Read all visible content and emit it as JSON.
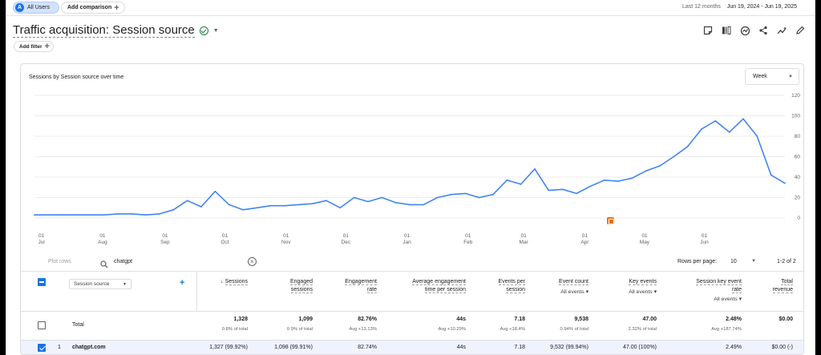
{
  "topbar": {
    "segment_initial": "A",
    "segment_label": "All Users",
    "add_comparison": "Add comparison",
    "range_label": "Last 12 months",
    "range_value": "Jun 19, 2024 - Jun 19, 2025"
  },
  "report": {
    "title": "Traffic acquisition: Session source",
    "add_filter": "Add filter"
  },
  "chart_card": {
    "title": "Sessions by Session source over time",
    "granularity": "Week"
  },
  "chart_data": {
    "type": "line",
    "title": "Sessions by Session source over time",
    "x_ticks": [
      {
        "day": "01",
        "month": "Jul"
      },
      {
        "day": "01",
        "month": "Aug"
      },
      {
        "day": "01",
        "month": "Sep"
      },
      {
        "day": "01",
        "month": "Oct"
      },
      {
        "day": "01",
        "month": "Nov"
      },
      {
        "day": "01",
        "month": "Dec"
      },
      {
        "day": "01",
        "month": "Jan"
      },
      {
        "day": "01",
        "month": "Feb"
      },
      {
        "day": "01",
        "month": "Mar"
      },
      {
        "day": "01",
        "month": "Apr"
      },
      {
        "day": "01",
        "month": "May"
      },
      {
        "day": "01",
        "month": "Jun"
      }
    ],
    "y_ticks": [
      "0",
      "20",
      "40",
      "60",
      "80",
      "100",
      "120"
    ],
    "ylim": [
      0,
      120
    ],
    "grid": true,
    "series": [
      {
        "color": "#4285f4",
        "values": [
          3,
          3,
          3,
          3,
          3,
          3,
          4,
          4,
          3,
          4,
          8,
          17,
          11,
          26,
          13,
          8,
          10,
          12,
          12,
          13,
          14,
          17,
          10,
          20,
          16,
          20,
          15,
          13,
          13,
          20,
          23,
          24,
          20,
          23,
          37,
          33,
          48,
          27,
          28,
          24,
          31,
          37,
          36,
          39,
          46,
          51,
          60,
          70,
          87,
          95,
          84,
          97,
          80,
          42,
          34
        ]
      }
    ]
  },
  "table": {
    "plot_rows": "Plot rows",
    "search_value": "chatgpt",
    "rows_per_page_label": "Rows per page:",
    "rows_per_page_value": "10",
    "page_range": "1-2 of 2",
    "dimension": "Session source",
    "columns": [
      {
        "label1": "Sessions",
        "label2": "",
        "events": "",
        "sorted": true
      },
      {
        "label1": "Engaged",
        "label2": "sessions",
        "events": ""
      },
      {
        "label1": "Engagement",
        "label2": "rate",
        "events": ""
      },
      {
        "label1": "Average engagement",
        "label2": "time per session",
        "events": ""
      },
      {
        "label1": "Events per",
        "label2": "session",
        "events": ""
      },
      {
        "label1": "Event count",
        "label2": "",
        "events": "All events"
      },
      {
        "label1": "Key events",
        "label2": "",
        "events": "All events"
      },
      {
        "label1": "Session key event",
        "label2": "rate",
        "events": "All events"
      },
      {
        "label1": "Total",
        "label2": "revenue",
        "events": ""
      }
    ],
    "total": {
      "label": "Total",
      "values": [
        "1,328",
        "1,099",
        "82.76%",
        "44s",
        "7.18",
        "9,538",
        "47.00",
        "2.48%",
        "$0.00"
      ],
      "subs": [
        "0.8% of total",
        "0.9% of total",
        "Avg +13.13%",
        "Avg +10.29%",
        "Avg +18.4%",
        "0.94% of total",
        "2.32% of total",
        "Avg +187.74%",
        ""
      ]
    },
    "rows": [
      {
        "index": "1",
        "source": "chatgpt.com",
        "values": [
          "1,327 (99.92%)",
          "1,098 (99.91%)",
          "82.74%",
          "44s",
          "7.18",
          "9,532 (99.94%)",
          "47.00 (100%)",
          "2.49%",
          "$0.00 (-)"
        ]
      }
    ]
  }
}
